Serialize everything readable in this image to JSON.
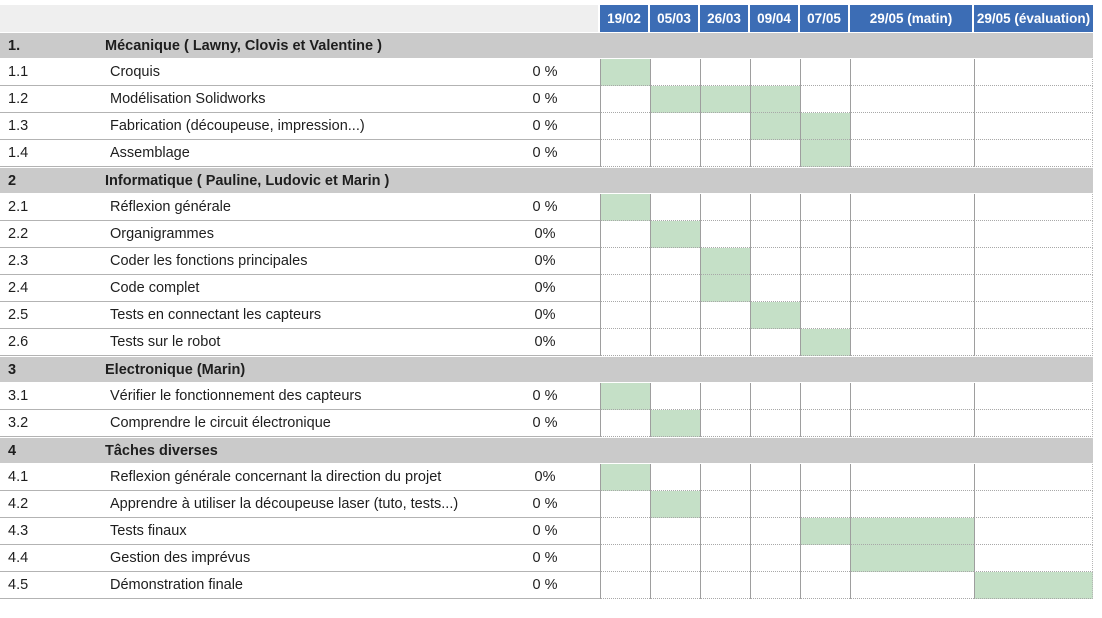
{
  "colors": {
    "header_blue": "#3c6db5",
    "header_left_gray": "#efefef",
    "band_gray": "#cacaca",
    "fill_green": "#c5e0c7"
  },
  "chart_data": {
    "type": "table",
    "subtype": "gantt",
    "title": "",
    "columns": [
      "19/02",
      "05/03",
      "26/03",
      "09/04",
      "07/05",
      "29/05 (matin)",
      "29/05 (évaluation)"
    ],
    "sections": [
      {
        "number": "1.",
        "title": "Mécanique ( Lawny, Clovis et Valentine )",
        "tasks": [
          {
            "number": "1.1",
            "label": "Croquis",
            "progress": "0 %",
            "filled": [
              "19/02"
            ]
          },
          {
            "number": "1.2",
            "label": "Modélisation Solidworks",
            "progress": "0 %",
            "filled": [
              "05/03",
              "26/03",
              "09/04"
            ]
          },
          {
            "number": "1.3",
            "label": "Fabrication (découpeuse, impression...)",
            "progress": "0 %",
            "filled": [
              "09/04",
              "07/05"
            ]
          },
          {
            "number": "1.4",
            "label": "Assemblage",
            "progress": "0 %",
            "filled": [
              "07/05"
            ]
          }
        ]
      },
      {
        "number": "2",
        "title": "Informatique ( Pauline, Ludovic et Marin )",
        "tasks": [
          {
            "number": "2.1",
            "label": "Réflexion générale",
            "progress": "0 %",
            "filled": [
              "19/02"
            ]
          },
          {
            "number": "2.2",
            "label": "Organigrammes",
            "progress": "0%",
            "filled": [
              "05/03"
            ]
          },
          {
            "number": "2.3",
            "label": "Coder les fonctions principales",
            "progress": "0%",
            "filled": [
              "26/03"
            ]
          },
          {
            "number": "2.4",
            "label": "Code complet",
            "progress": "0%",
            "filled": [
              "26/03"
            ]
          },
          {
            "number": "2.5",
            "label": "Tests en connectant les capteurs",
            "progress": "0%",
            "filled": [
              "09/04"
            ]
          },
          {
            "number": "2.6",
            "label": "Tests sur le robot",
            "progress": "0%",
            "filled": [
              "07/05"
            ]
          }
        ]
      },
      {
        "number": "3",
        "title": "Electronique (Marin)",
        "tasks": [
          {
            "number": "3.1",
            "label": "Vérifier le fonctionnement des capteurs",
            "progress": "0 %",
            "filled": [
              "19/02"
            ]
          },
          {
            "number": "3.2",
            "label": "Comprendre le circuit électronique",
            "progress": "0 %",
            "filled": [
              "05/03"
            ]
          }
        ]
      },
      {
        "number": "4",
        "title": "Tâches diverses",
        "tasks": [
          {
            "number": "4.1",
            "label": "Reflexion générale concernant la direction du projet",
            "progress": "0%",
            "filled": [
              "19/02"
            ]
          },
          {
            "number": "4.2",
            "label": "Apprendre à utiliser la découpeuse laser (tuto, tests...)",
            "progress": "0 %",
            "filled": [
              "05/03"
            ]
          },
          {
            "number": "4.3",
            "label": "Tests finaux",
            "progress": "0 %",
            "filled": [
              "07/05",
              "29/05 (matin)"
            ]
          },
          {
            "number": "4.4",
            "label": "Gestion des imprévus",
            "progress": "0 %",
            "filled": [
              "29/05 (matin)"
            ]
          },
          {
            "number": "4.5",
            "label": "Démonstration finale",
            "progress": "0 %",
            "filled": [
              "29/05 (évaluation)"
            ]
          }
        ]
      }
    ]
  }
}
